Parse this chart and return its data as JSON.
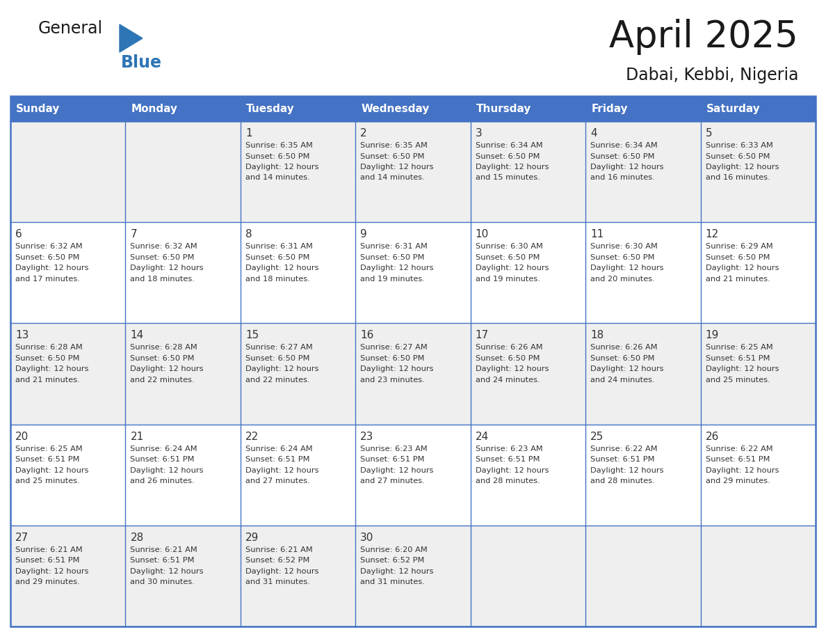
{
  "title": "April 2025",
  "subtitle": "Dabai, Kebbi, Nigeria",
  "header_color": "#4472C4",
  "header_text_color": "#FFFFFF",
  "cell_bg_even": "#EFEFEF",
  "cell_bg_odd": "#FFFFFF",
  "border_color": "#4472C4",
  "text_color": "#333333",
  "days_of_week": [
    "Sunday",
    "Monday",
    "Tuesday",
    "Wednesday",
    "Thursday",
    "Friday",
    "Saturday"
  ],
  "calendar_data": [
    [
      {
        "day": "",
        "sunrise": "",
        "sunset": "",
        "daylight": ""
      },
      {
        "day": "",
        "sunrise": "",
        "sunset": "",
        "daylight": ""
      },
      {
        "day": "1",
        "sunrise": "6:35 AM",
        "sunset": "6:50 PM",
        "daylight": "12 hours and 14 minutes."
      },
      {
        "day": "2",
        "sunrise": "6:35 AM",
        "sunset": "6:50 PM",
        "daylight": "12 hours and 14 minutes."
      },
      {
        "day": "3",
        "sunrise": "6:34 AM",
        "sunset": "6:50 PM",
        "daylight": "12 hours and 15 minutes."
      },
      {
        "day": "4",
        "sunrise": "6:34 AM",
        "sunset": "6:50 PM",
        "daylight": "12 hours and 16 minutes."
      },
      {
        "day": "5",
        "sunrise": "6:33 AM",
        "sunset": "6:50 PM",
        "daylight": "12 hours and 16 minutes."
      }
    ],
    [
      {
        "day": "6",
        "sunrise": "6:32 AM",
        "sunset": "6:50 PM",
        "daylight": "12 hours and 17 minutes."
      },
      {
        "day": "7",
        "sunrise": "6:32 AM",
        "sunset": "6:50 PM",
        "daylight": "12 hours and 18 minutes."
      },
      {
        "day": "8",
        "sunrise": "6:31 AM",
        "sunset": "6:50 PM",
        "daylight": "12 hours and 18 minutes."
      },
      {
        "day": "9",
        "sunrise": "6:31 AM",
        "sunset": "6:50 PM",
        "daylight": "12 hours and 19 minutes."
      },
      {
        "day": "10",
        "sunrise": "6:30 AM",
        "sunset": "6:50 PM",
        "daylight": "12 hours and 19 minutes."
      },
      {
        "day": "11",
        "sunrise": "6:30 AM",
        "sunset": "6:50 PM",
        "daylight": "12 hours and 20 minutes."
      },
      {
        "day": "12",
        "sunrise": "6:29 AM",
        "sunset": "6:50 PM",
        "daylight": "12 hours and 21 minutes."
      }
    ],
    [
      {
        "day": "13",
        "sunrise": "6:28 AM",
        "sunset": "6:50 PM",
        "daylight": "12 hours and 21 minutes."
      },
      {
        "day": "14",
        "sunrise": "6:28 AM",
        "sunset": "6:50 PM",
        "daylight": "12 hours and 22 minutes."
      },
      {
        "day": "15",
        "sunrise": "6:27 AM",
        "sunset": "6:50 PM",
        "daylight": "12 hours and 22 minutes."
      },
      {
        "day": "16",
        "sunrise": "6:27 AM",
        "sunset": "6:50 PM",
        "daylight": "12 hours and 23 minutes."
      },
      {
        "day": "17",
        "sunrise": "6:26 AM",
        "sunset": "6:50 PM",
        "daylight": "12 hours and 24 minutes."
      },
      {
        "day": "18",
        "sunrise": "6:26 AM",
        "sunset": "6:50 PM",
        "daylight": "12 hours and 24 minutes."
      },
      {
        "day": "19",
        "sunrise": "6:25 AM",
        "sunset": "6:51 PM",
        "daylight": "12 hours and 25 minutes."
      }
    ],
    [
      {
        "day": "20",
        "sunrise": "6:25 AM",
        "sunset": "6:51 PM",
        "daylight": "12 hours and 25 minutes."
      },
      {
        "day": "21",
        "sunrise": "6:24 AM",
        "sunset": "6:51 PM",
        "daylight": "12 hours and 26 minutes."
      },
      {
        "day": "22",
        "sunrise": "6:24 AM",
        "sunset": "6:51 PM",
        "daylight": "12 hours and 27 minutes."
      },
      {
        "day": "23",
        "sunrise": "6:23 AM",
        "sunset": "6:51 PM",
        "daylight": "12 hours and 27 minutes."
      },
      {
        "day": "24",
        "sunrise": "6:23 AM",
        "sunset": "6:51 PM",
        "daylight": "12 hours and 28 minutes."
      },
      {
        "day": "25",
        "sunrise": "6:22 AM",
        "sunset": "6:51 PM",
        "daylight": "12 hours and 28 minutes."
      },
      {
        "day": "26",
        "sunrise": "6:22 AM",
        "sunset": "6:51 PM",
        "daylight": "12 hours and 29 minutes."
      }
    ],
    [
      {
        "day": "27",
        "sunrise": "6:21 AM",
        "sunset": "6:51 PM",
        "daylight": "12 hours and 29 minutes."
      },
      {
        "day": "28",
        "sunrise": "6:21 AM",
        "sunset": "6:51 PM",
        "daylight": "12 hours and 30 minutes."
      },
      {
        "day": "29",
        "sunrise": "6:21 AM",
        "sunset": "6:52 PM",
        "daylight": "12 hours and 31 minutes."
      },
      {
        "day": "30",
        "sunrise": "6:20 AM",
        "sunset": "6:52 PM",
        "daylight": "12 hours and 31 minutes."
      },
      {
        "day": "",
        "sunrise": "",
        "sunset": "",
        "daylight": ""
      },
      {
        "day": "",
        "sunrise": "",
        "sunset": "",
        "daylight": ""
      },
      {
        "day": "",
        "sunrise": "",
        "sunset": "",
        "daylight": ""
      }
    ]
  ],
  "logo_color_general": "#1a1a1a",
  "logo_color_blue": "#2E75B6",
  "logo_triangle_color": "#2E75B6"
}
